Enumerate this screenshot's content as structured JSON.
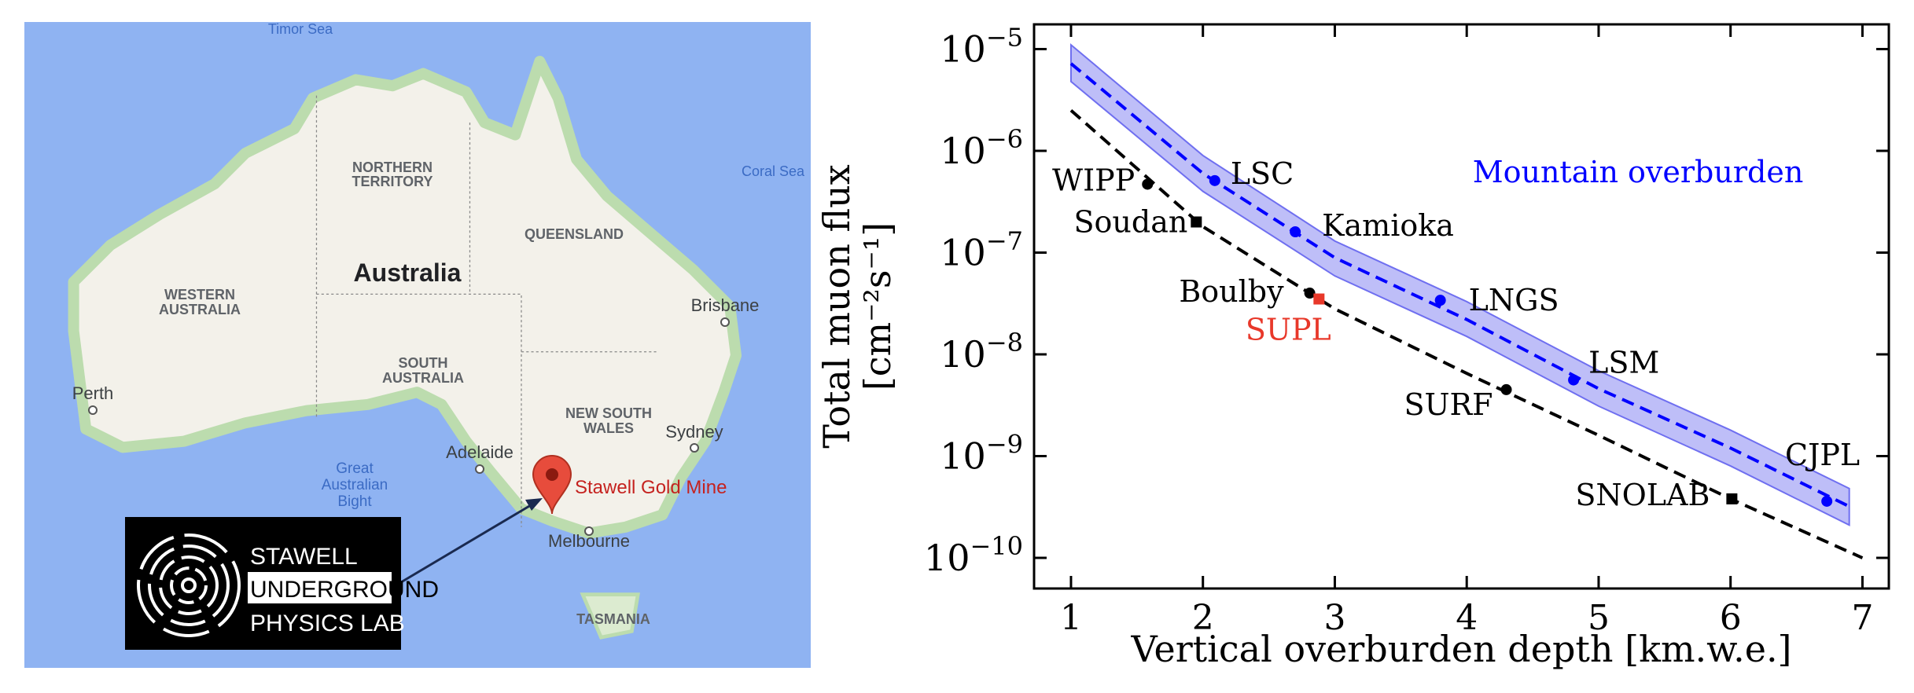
{
  "map": {
    "timor_sea": "Timor Sea",
    "coral_sea": "Coral Sea",
    "northern_territory": [
      "NORTHERN",
      "TERRITORY"
    ],
    "country": "Australia",
    "western_australia": [
      "WESTERN",
      "AUSTRALIA"
    ],
    "queensland": "QUEENSLAND",
    "south_australia": [
      "SOUTH",
      "AUSTRALIA"
    ],
    "new_south_wales": [
      "NEW SOUTH",
      "WALES"
    ],
    "brisbane": "Brisbane",
    "perth": "Perth",
    "adelaide": "Adelaide",
    "sydney": "Sydney",
    "melbourne": "Melbourne",
    "bight": [
      "Great",
      "Australian",
      "Bight"
    ],
    "tasmania": "TASMANIA",
    "pin": "Stawell Gold Mine"
  },
  "logo": [
    "STAWELL",
    "UNDERGROUND",
    "PHYSICS LAB"
  ],
  "chart_data": {
    "type": "scatter",
    "xlabel": "Vertical overburden depth [km.w.e.]",
    "ylabel": [
      "Total muon flux",
      "[cm⁻²s⁻¹]"
    ],
    "annotation": "Mountain overburden",
    "annotation_color": "#0000ff",
    "ylog": true,
    "xlim": [
      0.72,
      7.2
    ],
    "ylim": [
      5e-11,
      1.75e-05
    ],
    "xticks": [
      1,
      2,
      3,
      4,
      5,
      6,
      7
    ],
    "yticks": [
      {
        "value": 1e-05,
        "label": "10−5"
      },
      {
        "value": 1e-06,
        "label": "10−6"
      },
      {
        "value": 1e-07,
        "label": "10−7"
      },
      {
        "value": 1e-08,
        "label": "10−8"
      },
      {
        "value": 1e-09,
        "label": "10−9"
      },
      {
        "value": 1e-10,
        "label": "10−10"
      }
    ],
    "band": {
      "color": "#6f6ff0",
      "x": [
        1,
        2,
        3,
        4,
        5,
        6,
        6.9
      ],
      "high": [
        1.1e-05,
        9e-07,
        1.3e-07,
        3.3e-08,
        6.9e-09,
        1.8e-09,
        4.8e-10
      ],
      "low": [
        4.8e-06,
        4e-07,
        5.9e-08,
        1.5e-08,
        3.1e-09,
        8e-10,
        2.1e-10
      ]
    },
    "curves": [
      {
        "color": "#0000ff",
        "x": [
          1,
          2,
          3,
          4,
          5,
          6,
          6.9
        ],
        "values": [
          7.2e-06,
          6e-07,
          8.9e-08,
          2.2e-08,
          4.6e-09,
          1.2e-09,
          3.2e-10
        ]
      },
      {
        "color": "#000000",
        "x": [
          1,
          2,
          3,
          4,
          5,
          6,
          7
        ],
        "values": [
          2.5e-06,
          1.8e-07,
          2.8e-08,
          6.5e-09,
          1.6e-09,
          3.8e-10,
          1e-10
        ]
      }
    ],
    "points": {
      "labels": [
        "LSC",
        "Kamioka",
        "LNGS",
        "LSM",
        "CJPL",
        "WIPP",
        "Soudan",
        "Boulby",
        "SUPL",
        "SURF",
        "SNOLAB"
      ],
      "x": [
        2.09,
        2.7,
        3.8,
        4.81,
        6.73,
        1.58,
        1.95,
        2.81,
        2.88,
        4.3,
        6.01
      ],
      "values": [
        5.1e-07,
        1.6e-07,
        3.4e-08,
        5.6e-09,
        3.6e-10,
        4.7e-07,
        2e-07,
        4e-08,
        3.5e-08,
        4.5e-09,
        3.8e-10
      ],
      "colors": [
        "#0000ff",
        "#0000ff",
        "#0000ff",
        "#0000ff",
        "#0000ff",
        "#000000",
        "#000000",
        "#000000",
        "#e8382a",
        "#000000",
        "#000000"
      ],
      "label_colors": [
        "#000000",
        "#000000",
        "#000000",
        "#000000",
        "#000000",
        "#000000",
        "#000000",
        "#000000",
        "#e8382a",
        "#000000",
        "#000000"
      ],
      "markers": [
        "circle",
        "circle",
        "circle",
        "circle",
        "circle",
        "circle",
        "square",
        "circle",
        "square",
        "circle",
        "square"
      ]
    }
  }
}
